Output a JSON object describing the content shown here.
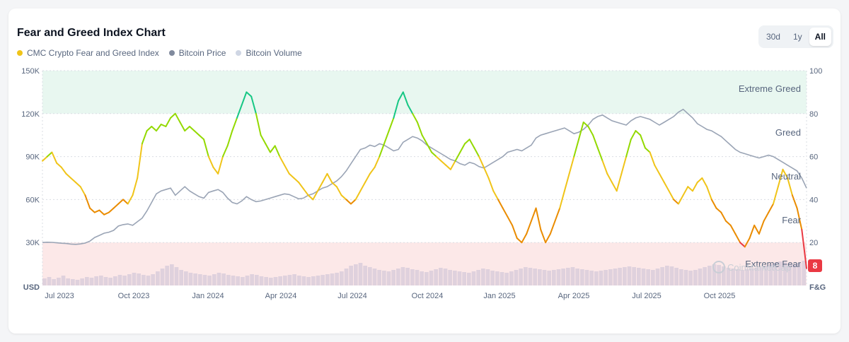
{
  "title": "Fear and Greed Index Chart",
  "legend": [
    {
      "label": "CMC Crypto Fear and Greed Index",
      "color": "#f0c419"
    },
    {
      "label": "Bitcoin Price",
      "color": "#808a9d"
    },
    {
      "label": "Bitcoin Volume",
      "color": "#cfd6e4"
    }
  ],
  "range_buttons": [
    "30d",
    "1y",
    "All"
  ],
  "active_range": "All",
  "watermark": "CoinMarketCap",
  "chart_data": {
    "type": "line",
    "x_ticks": [
      "Jul 2023",
      "Oct 2023",
      "Jan 2024",
      "Apr 2024",
      "Jul 2024",
      "Oct 2024",
      "Jan 2025",
      "Apr 2025",
      "Jul 2025",
      "Oct 2025"
    ],
    "left_axis": {
      "unit": "USD",
      "ticks": [
        "150K",
        "120K",
        "90K",
        "60K",
        "30K"
      ],
      "range": [
        0,
        150000
      ]
    },
    "right_axis": {
      "unit": "F&G",
      "ticks": [
        "100",
        "80",
        "60",
        "40",
        "20"
      ],
      "range": [
        0,
        100
      ]
    },
    "zones": [
      "Extreme Greed",
      "Greed",
      "Neutral",
      "Fear",
      "Extreme Fear"
    ],
    "current_value": "8",
    "fear_greed": [
      58,
      60,
      62,
      57,
      55,
      52,
      50,
      48,
      46,
      42,
      36,
      34,
      35,
      33,
      34,
      36,
      38,
      40,
      38,
      42,
      50,
      66,
      72,
      74,
      72,
      75,
      74,
      78,
      80,
      76,
      72,
      74,
      72,
      70,
      68,
      60,
      55,
      52,
      60,
      65,
      72,
      78,
      84,
      90,
      88,
      80,
      70,
      66,
      62,
      65,
      60,
      56,
      52,
      50,
      48,
      45,
      42,
      40,
      44,
      48,
      52,
      48,
      46,
      42,
      40,
      38,
      40,
      44,
      48,
      52,
      55,
      60,
      66,
      72,
      78,
      86,
      90,
      84,
      80,
      76,
      70,
      66,
      62,
      60,
      58,
      56,
      54,
      58,
      62,
      66,
      68,
      64,
      60,
      55,
      50,
      44,
      40,
      36,
      32,
      28,
      22,
      20,
      24,
      30,
      36,
      26,
      20,
      24,
      30,
      36,
      44,
      52,
      60,
      68,
      76,
      74,
      70,
      64,
      58,
      52,
      48,
      44,
      52,
      60,
      68,
      72,
      70,
      64,
      62,
      56,
      52,
      48,
      44,
      40,
      38,
      42,
      46,
      44,
      48,
      50,
      46,
      40,
      36,
      34,
      30,
      28,
      24,
      20,
      18,
      22,
      28,
      24,
      30,
      34,
      38,
      46,
      54,
      50,
      42,
      36,
      26,
      8
    ],
    "bitcoin_price": [
      30000,
      30200,
      30100,
      29800,
      29500,
      29300,
      28900,
      28700,
      29000,
      29600,
      31000,
      33500,
      35000,
      36500,
      37200,
      38500,
      41500,
      42500,
      43000,
      42000,
      44500,
      47000,
      52000,
      58000,
      64000,
      66000,
      67000,
      68000,
      63000,
      66000,
      69000,
      66000,
      64000,
      62000,
      61000,
      65000,
      66000,
      67000,
      65000,
      61000,
      58000,
      57000,
      59000,
      62000,
      60000,
      58500,
      59000,
      60000,
      61000,
      62000,
      63000,
      64000,
      63500,
      62000,
      60500,
      61000,
      63000,
      64000,
      66000,
      68000,
      69000,
      71000,
      73000,
      76000,
      80000,
      85000,
      90000,
      95000,
      96000,
      98000,
      97000,
      99000,
      98000,
      96000,
      94000,
      95000,
      100000,
      102000,
      104000,
      103000,
      101000,
      98000,
      96000,
      94000,
      92000,
      90000,
      88000,
      87000,
      85000,
      84000,
      86000,
      85000,
      83000,
      82000,
      84000,
      86000,
      88000,
      90000,
      93000,
      94000,
      95000,
      94000,
      96000,
      98000,
      103000,
      105000,
      106000,
      107000,
      108000,
      109000,
      110000,
      108000,
      106000,
      107000,
      109000,
      112000,
      116000,
      118000,
      119000,
      117000,
      115000,
      114000,
      113000,
      112000,
      115000,
      117000,
      118000,
      117000,
      116000,
      114000,
      112000,
      114000,
      116000,
      118000,
      121000,
      123000,
      120000,
      117000,
      113000,
      111000,
      109000,
      108000,
      106000,
      104000,
      101000,
      98000,
      95000,
      93000,
      92000,
      91000,
      90000,
      89000,
      90000,
      91000,
      90000,
      88000,
      86000,
      84000,
      82000,
      80000,
      75000,
      68000
    ],
    "bitcoin_volume": [
      10,
      12,
      9,
      11,
      14,
      10,
      9,
      8,
      10,
      12,
      11,
      13,
      14,
      12,
      11,
      13,
      15,
      14,
      16,
      18,
      17,
      15,
      14,
      16,
      20,
      24,
      28,
      30,
      26,
      22,
      20,
      18,
      17,
      16,
      15,
      14,
      16,
      18,
      17,
      15,
      14,
      13,
      12,
      14,
      16,
      15,
      13,
      12,
      11,
      12,
      13,
      14,
      15,
      16,
      14,
      13,
      12,
      13,
      14,
      15,
      16,
      17,
      18,
      20,
      24,
      28,
      30,
      32,
      28,
      26,
      24,
      22,
      21,
      20,
      22,
      24,
      26,
      25,
      23,
      22,
      20,
      19,
      21,
      23,
      25,
      24,
      22,
      21,
      20,
      19,
      18,
      20,
      22,
      24,
      23,
      21,
      20,
      19,
      18,
      20,
      22,
      24,
      26,
      25,
      24,
      23,
      22,
      21,
      22,
      23,
      24,
      25,
      26,
      24,
      23,
      22,
      21,
      20,
      21,
      22,
      23,
      24,
      25,
      26,
      27,
      26,
      25,
      24,
      23,
      22,
      24,
      26,
      28,
      27,
      25,
      23,
      22,
      21,
      22,
      24,
      26,
      28,
      30,
      29,
      27,
      25,
      24,
      23,
      22,
      23,
      24,
      25,
      26,
      28,
      30,
      32,
      34,
      33,
      31,
      30,
      32,
      35
    ]
  }
}
